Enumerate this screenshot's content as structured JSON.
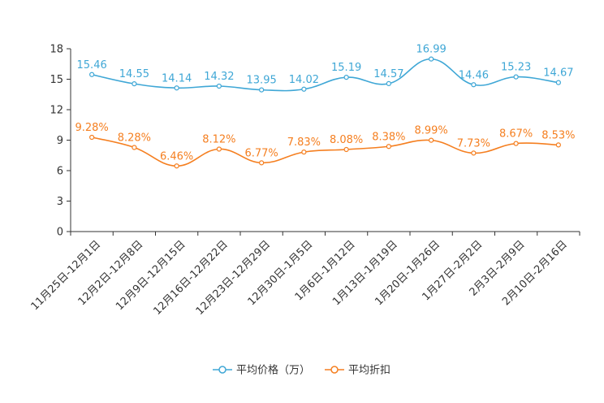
{
  "chart_data": {
    "type": "line",
    "categories": [
      "11月25日-12月1日",
      "12月2日-12月8日",
      "12月9日-12月15日",
      "12月16日-12月22日",
      "12月23日-12月29日",
      "12月30日-1月5日",
      "1月6日-1月12日",
      "1月13日-1月19日",
      "1月20日-1月26日",
      "1月27日-2月2日",
      "2月3日-2月9日",
      "2月10日-2月16日"
    ],
    "ylim": [
      0,
      18
    ],
    "yticks": [
      "0",
      "3",
      "6",
      "9",
      "12",
      "15",
      "18"
    ],
    "series": [
      {
        "name": "平均价格（万）",
        "color": "#3fa7d6",
        "values": [
          15.46,
          14.55,
          14.14,
          14.32,
          13.95,
          14.02,
          15.19,
          14.57,
          16.99,
          14.46,
          15.23,
          14.67
        ],
        "labels": [
          "15.46",
          "14.55",
          "14.14",
          "14.32",
          "13.95",
          "14.02",
          "15.19",
          "14.57",
          "16.99",
          "14.46",
          "15.23",
          "14.67"
        ]
      },
      {
        "name": "平均折扣",
        "color": "#f57f20",
        "values": [
          9.28,
          8.28,
          6.46,
          8.12,
          6.77,
          7.83,
          8.08,
          8.38,
          8.99,
          7.73,
          8.67,
          8.53
        ],
        "labels": [
          "9.28%",
          "8.28%",
          "6.46%",
          "8.12%",
          "6.77%",
          "7.83%",
          "8.08%",
          "8.38%",
          "8.99%",
          "7.73%",
          "8.67%",
          "8.53%"
        ]
      }
    ],
    "legend_position": "bottom-center",
    "grid": false
  }
}
